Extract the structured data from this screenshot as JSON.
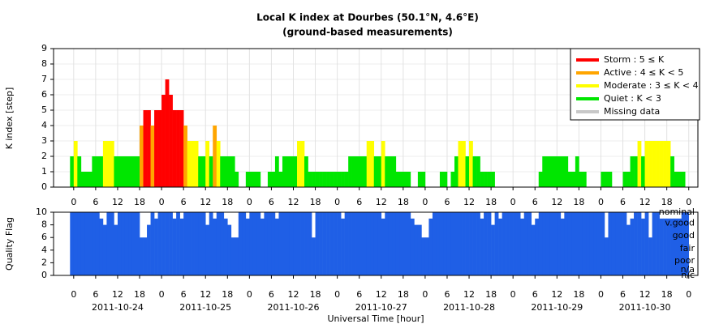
{
  "chart_data": [
    {
      "type": "bar",
      "title": "Local K index at Dourbes (50.1°N, 4.6°E)",
      "subtitle": "(ground-based measurements)",
      "ylabel": "K index [step]",
      "x": [
        -1,
        0,
        1,
        2,
        3,
        4,
        5,
        6,
        7,
        8,
        9,
        10,
        11,
        12,
        13,
        14,
        15,
        16,
        17,
        18,
        19,
        20,
        21,
        22,
        23,
        24,
        25,
        26,
        27,
        28,
        29,
        30,
        31,
        32,
        33,
        34,
        35,
        36,
        37,
        38,
        39,
        40,
        41,
        42,
        43,
        44,
        45,
        46,
        47,
        48,
        49,
        50,
        51,
        52,
        53,
        54,
        55,
        56,
        57,
        58,
        59,
        60,
        61,
        62,
        63,
        64,
        65,
        66,
        67,
        68,
        69,
        70,
        71,
        72,
        73,
        74,
        75,
        76,
        77,
        78,
        79,
        80,
        81,
        82,
        83,
        84,
        85,
        86,
        87,
        88,
        89,
        90,
        91,
        92,
        93,
        94,
        95,
        96,
        97,
        98,
        99,
        100,
        101,
        102,
        103,
        104,
        105,
        106,
        107,
        108,
        109,
        110,
        111,
        112,
        113,
        114,
        115,
        116,
        117,
        118,
        119,
        120,
        121,
        122,
        123,
        124,
        125,
        126,
        127,
        128,
        129,
        130,
        131,
        132,
        133,
        134,
        135,
        136,
        137,
        138,
        139,
        140,
        141,
        142,
        143,
        144,
        145,
        146,
        147,
        148,
        149,
        150,
        151,
        152,
        153,
        154,
        155,
        156,
        157,
        158,
        159,
        160,
        161,
        162,
        163,
        164,
        165,
        166,
        167
      ],
      "values": [
        2,
        3,
        2,
        1,
        1,
        1,
        2,
        2,
        2,
        3,
        3,
        3,
        2,
        2,
        2,
        2,
        2,
        2,
        2,
        4,
        5,
        5,
        4,
        5,
        5,
        6,
        7,
        6,
        5,
        5,
        5,
        4,
        3,
        3,
        3,
        2,
        2,
        3,
        2,
        4,
        3,
        2,
        2,
        2,
        2,
        1,
        0,
        0,
        1,
        1,
        1,
        1,
        0,
        0,
        1,
        1,
        2,
        1,
        2,
        2,
        2,
        2,
        3,
        3,
        2,
        1,
        1,
        1,
        1,
        1,
        1,
        1,
        1,
        1,
        1,
        1,
        2,
        2,
        2,
        2,
        2,
        3,
        3,
        2,
        2,
        3,
        2,
        2,
        2,
        1,
        1,
        1,
        1,
        0,
        0,
        1,
        1,
        0,
        0,
        0,
        0,
        1,
        1,
        0,
        1,
        2,
        3,
        3,
        2,
        3,
        2,
        2,
        1,
        1,
        1,
        1,
        0,
        0,
        0,
        0,
        0,
        0,
        0,
        0,
        0,
        0,
        0,
        0,
        1,
        2,
        2,
        2,
        2,
        2,
        2,
        2,
        1,
        1,
        2,
        1,
        1,
        0,
        0,
        0,
        0,
        1,
        1,
        1,
        0,
        0,
        0,
        1,
        1,
        2,
        2,
        3,
        2,
        3,
        3,
        3,
        3,
        3,
        3,
        3,
        2,
        1,
        1,
        1,
        0
      ],
      "levels": [
        {
          "name": "Storm : 5 ≤ K",
          "color": "#ff0000",
          "min": 5
        },
        {
          "name": "Active : 4 ≤ K < 5",
          "color": "#ffa500",
          "min": 4
        },
        {
          "name": "Moderate : 3 ≤ K < 4",
          "color": "#ffff00",
          "min": 3
        },
        {
          "name": "Quiet : K < 3",
          "color": "#00e600"
        },
        {
          "name": "Missing data",
          "color": "#c8c8c8"
        }
      ],
      "xlim": [
        -5.5,
        170.5
      ],
      "ylim": [
        0,
        9
      ],
      "yticks": [
        0,
        1,
        2,
        3,
        4,
        5,
        6,
        7,
        8,
        9
      ],
      "xticks": [
        0,
        6,
        12,
        18,
        {
          "value": 24,
          "label": "0"
        },
        {
          "value": 30,
          "label": "6"
        },
        {
          "value": 36,
          "label": "12"
        },
        {
          "value": 42,
          "label": "18"
        },
        {
          "value": 48,
          "label": "0"
        },
        {
          "value": 54,
          "label": "6"
        },
        {
          "value": 60,
          "label": "12"
        },
        {
          "value": 66,
          "label": "18"
        },
        {
          "value": 72,
          "label": "0"
        },
        {
          "value": 78,
          "label": "6"
        },
        {
          "value": 84,
          "label": "12"
        },
        {
          "value": 90,
          "label": "18"
        },
        {
          "value": 96,
          "label": "0"
        },
        {
          "value": 102,
          "label": "6"
        },
        {
          "value": 108,
          "label": "12"
        },
        {
          "value": 114,
          "label": "18"
        },
        {
          "value": 120,
          "label": "0"
        },
        {
          "value": 126,
          "label": "6"
        },
        {
          "value": 132,
          "label": "12"
        },
        {
          "value": 138,
          "label": "18"
        },
        {
          "value": 144,
          "label": "0"
        },
        {
          "value": 150,
          "label": "6"
        },
        {
          "value": 156,
          "label": "12"
        },
        {
          "value": 162,
          "label": "18"
        },
        {
          "value": 168,
          "label": "0"
        }
      ]
    },
    {
      "type": "bar",
      "ylabel": "Quality Flag",
      "xlabel": "Universal Time [hour]",
      "color": "#1f5fe6",
      "x": [
        -1,
        0,
        1,
        2,
        3,
        4,
        5,
        6,
        7,
        8,
        9,
        10,
        11,
        12,
        13,
        14,
        15,
        16,
        17,
        18,
        19,
        20,
        21,
        22,
        23,
        24,
        25,
        26,
        27,
        28,
        29,
        30,
        31,
        32,
        33,
        34,
        35,
        36,
        37,
        38,
        39,
        40,
        41,
        42,
        43,
        44,
        45,
        46,
        47,
        48,
        49,
        50,
        51,
        52,
        53,
        54,
        55,
        56,
        57,
        58,
        59,
        60,
        61,
        62,
        63,
        64,
        65,
        66,
        67,
        68,
        69,
        70,
        71,
        72,
        73,
        74,
        75,
        76,
        77,
        78,
        79,
        80,
        81,
        82,
        83,
        84,
        85,
        86,
        87,
        88,
        89,
        90,
        91,
        92,
        93,
        94,
        95,
        96,
        97,
        98,
        99,
        100,
        101,
        102,
        103,
        104,
        105,
        106,
        107,
        108,
        109,
        110,
        111,
        112,
        113,
        114,
        115,
        116,
        117,
        118,
        119,
        120,
        121,
        122,
        123,
        124,
        125,
        126,
        127,
        128,
        129,
        130,
        131,
        132,
        133,
        134,
        135,
        136,
        137,
        138,
        139,
        140,
        141,
        142,
        143,
        144,
        145,
        146,
        147,
        148,
        149,
        150,
        151,
        152,
        153,
        154,
        155,
        156,
        157,
        158,
        159,
        160,
        161,
        162,
        163,
        164,
        165,
        166,
        167
      ],
      "values": [
        10,
        10,
        10,
        10,
        10,
        10,
        10,
        10,
        9,
        8,
        10,
        10,
        8,
        10,
        10,
        10,
        10,
        10,
        10,
        6,
        6,
        8,
        10,
        9,
        10,
        10,
        10,
        10,
        9,
        10,
        9,
        10,
        10,
        10,
        10,
        10,
        10,
        8,
        10,
        9,
        10,
        10,
        9,
        8,
        6,
        6,
        10,
        10,
        9,
        10,
        10,
        10,
        9,
        10,
        10,
        10,
        9,
        10,
        10,
        10,
        10,
        10,
        10,
        10,
        10,
        10,
        6,
        10,
        10,
        10,
        10,
        10,
        10,
        10,
        9,
        10,
        10,
        10,
        10,
        10,
        10,
        10,
        10,
        10,
        10,
        9,
        10,
        10,
        10,
        10,
        10,
        10,
        10,
        9,
        8,
        8,
        6,
        6,
        9,
        10,
        10,
        10,
        10,
        10,
        10,
        10,
        10,
        10,
        10,
        10,
        10,
        10,
        9,
        10,
        10,
        8,
        10,
        9,
        10,
        10,
        10,
        10,
        10,
        9,
        10,
        10,
        8,
        9,
        10,
        10,
        10,
        10,
        10,
        10,
        9,
        10,
        10,
        10,
        10,
        10,
        10,
        10,
        10,
        10,
        10,
        10,
        6,
        10,
        10,
        10,
        10,
        10,
        8,
        9,
        10,
        10,
        9,
        10,
        6,
        10,
        10,
        9,
        9,
        9,
        9,
        9,
        9,
        10,
        10
      ],
      "quality_labels": [
        "nominal",
        "v.good",
        "good",
        "fair",
        "poor",
        "n/a",
        "n/c"
      ],
      "xlim": [
        -5.5,
        170.5
      ],
      "ylim": [
        0,
        10
      ],
      "yticks": [
        0,
        2,
        4,
        6,
        8,
        10
      ],
      "xticks": [
        0,
        6,
        12,
        18,
        {
          "value": 24,
          "label": "0"
        },
        {
          "value": 30,
          "label": "6"
        },
        {
          "value": 36,
          "label": "12"
        },
        {
          "value": 42,
          "label": "18"
        },
        {
          "value": 48,
          "label": "0"
        },
        {
          "value": 54,
          "label": "6"
        },
        {
          "value": 60,
          "label": "12"
        },
        {
          "value": 66,
          "label": "18"
        },
        {
          "value": 72,
          "label": "0"
        },
        {
          "value": 78,
          "label": "6"
        },
        {
          "value": 84,
          "label": "12"
        },
        {
          "value": 90,
          "label": "18"
        },
        {
          "value": 96,
          "label": "0"
        },
        {
          "value": 102,
          "label": "6"
        },
        {
          "value": 108,
          "label": "12"
        },
        {
          "value": 114,
          "label": "18"
        },
        {
          "value": 120,
          "label": "0"
        },
        {
          "value": 126,
          "label": "6"
        },
        {
          "value": 132,
          "label": "12"
        },
        {
          "value": 138,
          "label": "18"
        },
        {
          "value": 144,
          "label": "0"
        },
        {
          "value": 150,
          "label": "6"
        },
        {
          "value": 156,
          "label": "12"
        },
        {
          "value": 162,
          "label": "18"
        },
        {
          "value": 168,
          "label": "0"
        }
      ],
      "date_ticks": [
        {
          "value": 12,
          "label": "2011-10-24"
        },
        {
          "value": 36,
          "label": "2011-10-25"
        },
        {
          "value": 60,
          "label": "2011-10-26"
        },
        {
          "value": 84,
          "label": "2011-10-27"
        },
        {
          "value": 108,
          "label": "2011-10-28"
        },
        {
          "value": 132,
          "label": "2011-10-29"
        },
        {
          "value": 156,
          "label": "2011-10-30"
        }
      ]
    }
  ]
}
